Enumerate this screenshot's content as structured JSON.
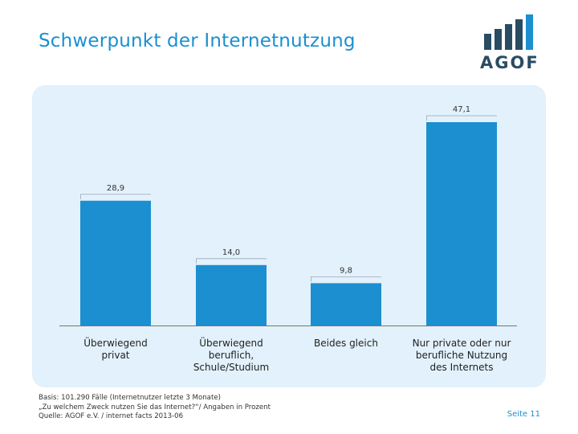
{
  "page": {
    "title": "Schwerpunkt der Internetnutzung",
    "logo_text": "AGOF",
    "page_number": "Seite 11"
  },
  "footnote": {
    "line1": "Basis: 101.290 Fälle (Internetnutzer letzte 3 Monate)",
    "line2": "„Zu welchem Zweck nutzen Sie das Internet?“/ Angaben in Prozent",
    "line3": "Quelle: AGOF e.V. / internet facts 2013-06"
  },
  "colors": {
    "accent": "#1b8fd0",
    "panel": "#e2f1fb",
    "logo_dark": "#2a4c63"
  },
  "chart_data": {
    "type": "bar",
    "title": "Schwerpunkt der Internetnutzung",
    "xlabel": "",
    "ylabel": "",
    "categories": [
      [
        "Überwiegend",
        "privat"
      ],
      [
        "Überwiegend",
        "beruflich,",
        "Schule/Studium"
      ],
      [
        "Beides gleich"
      ],
      [
        "Nur private oder nur",
        "berufliche Nutzung",
        "des Internets"
      ]
    ],
    "values": [
      28.9,
      14.0,
      9.8,
      47.1
    ],
    "value_labels": [
      "28,9",
      "14,0",
      "9,8",
      "47,1"
    ],
    "ylim": [
      0,
      47.1
    ],
    "grid": false
  }
}
